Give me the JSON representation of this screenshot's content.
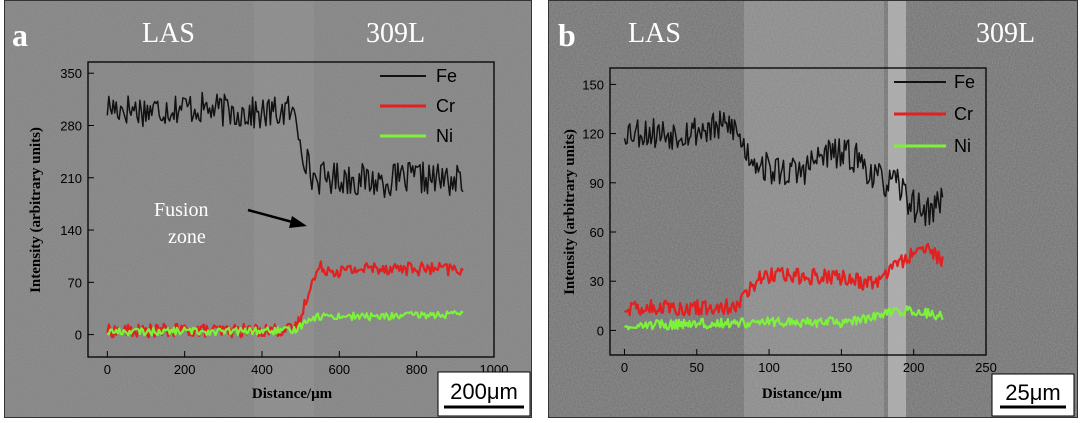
{
  "panels": [
    {
      "label": "a",
      "left_region": "LAS",
      "right_region": "309L",
      "annotation": {
        "line1": "Fusion",
        "line2": "zone"
      },
      "scale_bar": {
        "value": "200",
        "unit": "μm"
      },
      "colors": {
        "bg": "#7f7f7f"
      },
      "chart_data": {
        "type": "line",
        "xlabel": "Distance/μm",
        "ylabel": "Intensity (arbitrary units)",
        "xlim": [
          -50,
          1000
        ],
        "ylim": [
          -30,
          365
        ],
        "xticks": [
          0,
          200,
          400,
          600,
          800,
          1000
        ],
        "yticks": [
          0,
          70,
          140,
          210,
          280,
          350
        ],
        "legend_position": "top-right",
        "series": [
          {
            "name": "Fe",
            "color": "#111111",
            "noise": 22,
            "x": [
              0,
              100,
              200,
              300,
              400,
              470,
              490,
              510,
              530,
              600,
              700,
              800,
              920
            ],
            "y": [
              305,
              300,
              305,
              300,
              295,
              300,
              285,
              240,
              210,
              210,
              205,
              210,
              205
            ]
          },
          {
            "name": "Cr",
            "color": "#e32020",
            "noise": 9,
            "x": [
              0,
              100,
              200,
              300,
              400,
              480,
              500,
              520,
              550,
              600,
              700,
              800,
              920
            ],
            "y": [
              5,
              5,
              6,
              5,
              6,
              6,
              20,
              60,
              90,
              85,
              90,
              88,
              87
            ]
          },
          {
            "name": "Ni",
            "color": "#7cf23a",
            "noise": 5,
            "x": [
              0,
              100,
              200,
              300,
              400,
              480,
              500,
              520,
              560,
              700,
              800,
              920
            ],
            "y": [
              4,
              4,
              5,
              4,
              5,
              5,
              12,
              22,
              25,
              24,
              26,
              27
            ]
          }
        ]
      }
    },
    {
      "label": "b",
      "left_region": "LAS",
      "right_region": "309L",
      "scale_bar": {
        "value": "25",
        "unit": "μm"
      },
      "colors": {
        "bg": "#6f6f6f"
      },
      "chart_data": {
        "type": "line",
        "xlabel": "Distance/μm",
        "ylabel": "Intensity (arbitrary units)",
        "xlim": [
          -10,
          250
        ],
        "ylim": [
          -15,
          160
        ],
        "xticks": [
          0,
          50,
          100,
          150,
          200,
          250
        ],
        "yticks": [
          0,
          30,
          60,
          90,
          120,
          150
        ],
        "legend_position": "top-right",
        "series": [
          {
            "name": "Fe",
            "color": "#111111",
            "noise": 10,
            "x": [
              0,
              30,
              60,
              75,
              85,
              100,
              120,
              140,
              160,
              175,
              190,
              200,
              210,
              220
            ],
            "y": [
              122,
              120,
              123,
              125,
              108,
              98,
              96,
              108,
              106,
              92,
              88,
              76,
              72,
              80
            ]
          },
          {
            "name": "Cr",
            "color": "#e32020",
            "noise": 5,
            "x": [
              0,
              50,
              75,
              85,
              95,
              120,
              150,
              170,
              180,
              190,
              200,
              210,
              220
            ],
            "y": [
              14,
              14,
              14,
              24,
              34,
              33,
              32,
              28,
              32,
              42,
              46,
              48,
              42
            ]
          },
          {
            "name": "Ni",
            "color": "#7cf23a",
            "noise": 3,
            "x": [
              0,
              50,
              100,
              150,
              170,
              180,
              200,
              210,
              220
            ],
            "y": [
              3,
              4,
              5,
              5,
              8,
              11,
              12,
              10,
              9
            ]
          }
        ]
      }
    }
  ]
}
